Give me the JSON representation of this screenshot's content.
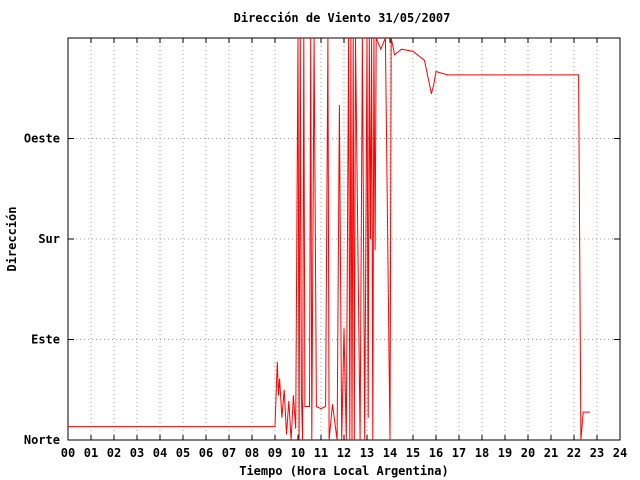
{
  "chart_data": {
    "type": "line",
    "title": "Dirección de Viento 31/05/2007",
    "xlabel": "Tiempo (Hora Local Argentina)",
    "ylabel": "Dirección",
    "xlim": [
      0,
      24
    ],
    "ylim": [
      0,
      360
    ],
    "x_ticks": [
      "00",
      "01",
      "02",
      "03",
      "04",
      "05",
      "06",
      "07",
      "08",
      "09",
      "10",
      "11",
      "12",
      "13",
      "14",
      "15",
      "16",
      "17",
      "18",
      "19",
      "20",
      "21",
      "22",
      "23",
      "24"
    ],
    "y_ticks": [
      {
        "value": 0,
        "label": "Norte"
      },
      {
        "value": 90,
        "label": "Este"
      },
      {
        "value": 180,
        "label": "Sur"
      },
      {
        "value": 270,
        "label": "Oeste"
      }
    ],
    "grid": true,
    "series": [
      {
        "color": "#ff0000",
        "points": [
          [
            0.0,
            12
          ],
          [
            1.0,
            12
          ],
          [
            2.0,
            12
          ],
          [
            3.0,
            12
          ],
          [
            4.0,
            12
          ],
          [
            5.0,
            12
          ],
          [
            6.0,
            12
          ],
          [
            7.0,
            12
          ],
          [
            8.0,
            12
          ],
          [
            9.0,
            12
          ],
          [
            9.1,
            70
          ],
          [
            9.15,
            40
          ],
          [
            9.2,
            55
          ],
          [
            9.3,
            20
          ],
          [
            9.4,
            45
          ],
          [
            9.5,
            5
          ],
          [
            9.6,
            35
          ],
          [
            9.7,
            0
          ],
          [
            9.8,
            40
          ],
          [
            9.9,
            10
          ],
          [
            10.0,
            360
          ],
          [
            10.05,
            0
          ],
          [
            10.1,
            360
          ],
          [
            10.15,
            40
          ],
          [
            10.2,
            0
          ],
          [
            10.25,
            360
          ],
          [
            10.3,
            30
          ],
          [
            10.5,
            30
          ],
          [
            10.55,
            360
          ],
          [
            10.6,
            0
          ],
          [
            10.7,
            360
          ],
          [
            10.8,
            30
          ],
          [
            11.0,
            28
          ],
          [
            11.2,
            30
          ],
          [
            11.3,
            360
          ],
          [
            11.35,
            0
          ],
          [
            11.5,
            32
          ],
          [
            11.7,
            0
          ],
          [
            11.8,
            300
          ],
          [
            11.9,
            0
          ],
          [
            12.0,
            100
          ],
          [
            12.1,
            0
          ],
          [
            12.2,
            360
          ],
          [
            12.25,
            0
          ],
          [
            12.3,
            360
          ],
          [
            12.35,
            0
          ],
          [
            12.4,
            360
          ],
          [
            12.45,
            0
          ],
          [
            12.5,
            360
          ],
          [
            12.7,
            0
          ],
          [
            12.8,
            360
          ],
          [
            12.9,
            0
          ],
          [
            13.0,
            360
          ],
          [
            13.05,
            20
          ],
          [
            13.1,
            360
          ],
          [
            13.15,
            180
          ],
          [
            13.2,
            360
          ],
          [
            13.25,
            0
          ],
          [
            13.3,
            360
          ],
          [
            13.35,
            170
          ],
          [
            13.4,
            360
          ],
          [
            13.6,
            350
          ],
          [
            13.8,
            360
          ],
          [
            14.0,
            0
          ],
          [
            14.05,
            360
          ],
          [
            14.2,
            345
          ],
          [
            14.5,
            350
          ],
          [
            15.0,
            348
          ],
          [
            15.5,
            340
          ],
          [
            15.8,
            310
          ],
          [
            15.9,
            318
          ],
          [
            16.0,
            330
          ],
          [
            16.5,
            327
          ],
          [
            17.0,
            327
          ],
          [
            18.0,
            327
          ],
          [
            19.0,
            327
          ],
          [
            20.0,
            327
          ],
          [
            21.0,
            327
          ],
          [
            22.0,
            327
          ],
          [
            22.2,
            327
          ],
          [
            22.3,
            0
          ],
          [
            22.4,
            25
          ],
          [
            22.5,
            25
          ],
          [
            22.7,
            25
          ]
        ]
      }
    ]
  }
}
